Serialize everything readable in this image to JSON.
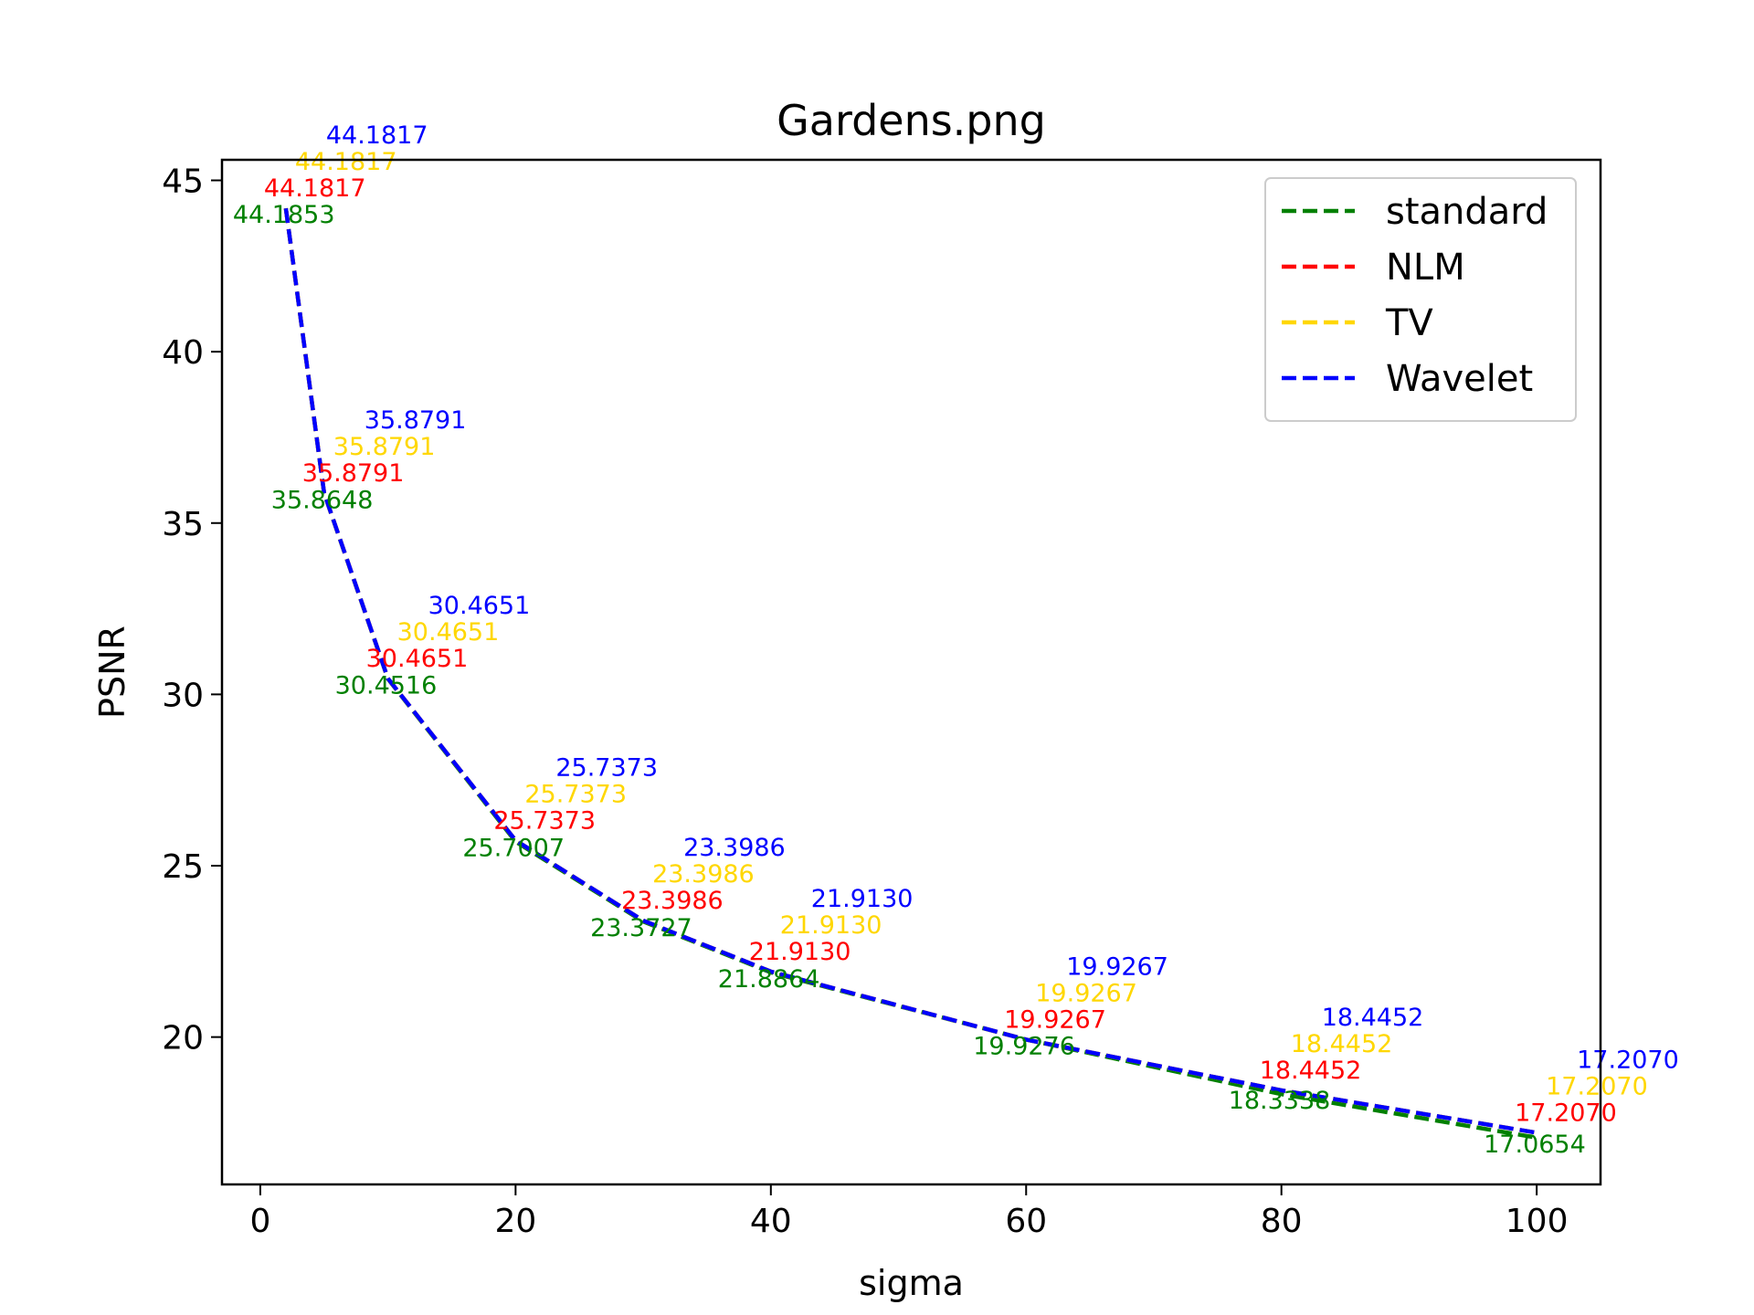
{
  "chart_data": {
    "type": "line",
    "title": "Gardens.png",
    "xlabel": "sigma",
    "ylabel": "PSNR",
    "xlim": [
      -3,
      105
    ],
    "ylim": [
      15.7,
      45.6
    ],
    "xticks": [
      0,
      20,
      40,
      60,
      80,
      100
    ],
    "yticks": [
      20,
      25,
      30,
      35,
      40,
      45
    ],
    "grid": false,
    "legend_position": "top-right",
    "x": [
      2,
      5,
      10,
      20,
      30,
      40,
      60,
      80,
      100
    ],
    "series": [
      {
        "name": "standard",
        "color": "#008000",
        "values": [
          44.1853,
          35.8648,
          30.4516,
          25.7007,
          23.3727,
          21.8864,
          19.9276,
          18.3338,
          17.0654
        ],
        "labels": [
          "44.1853",
          "35.8648",
          "30.4516",
          "25.7007",
          "23.3727",
          "21.8864",
          "19.9276",
          "18.3338",
          "17.0654"
        ]
      },
      {
        "name": "NLM",
        "color": "#ff0000",
        "values": [
          44.1817,
          35.8791,
          30.4651,
          25.7373,
          23.3986,
          21.913,
          19.9267,
          18.4452,
          17.207
        ],
        "labels": [
          "44.1817",
          "35.8791",
          "30.4651",
          "25.7373",
          "23.3986",
          "21.9130",
          "19.9267",
          "18.4452",
          "17.2070"
        ]
      },
      {
        "name": "TV",
        "color": "#ffd700",
        "values": [
          44.1817,
          35.8791,
          30.4651,
          25.7373,
          23.3986,
          21.913,
          19.9267,
          18.4452,
          17.207
        ],
        "labels": [
          "44.1817",
          "35.8791",
          "30.4651",
          "25.7373",
          "23.3986",
          "21.9130",
          "19.9267",
          "18.4452",
          "17.2070"
        ]
      },
      {
        "name": "Wavelet",
        "color": "#0000ff",
        "values": [
          44.1817,
          35.8791,
          30.4651,
          25.7373,
          23.3986,
          21.913,
          19.9267,
          18.4452,
          17.207
        ],
        "labels": [
          "44.1817",
          "35.8791",
          "30.4651",
          "25.7373",
          "23.3986",
          "21.9130",
          "19.9267",
          "18.4452",
          "17.2070"
        ]
      }
    ]
  }
}
